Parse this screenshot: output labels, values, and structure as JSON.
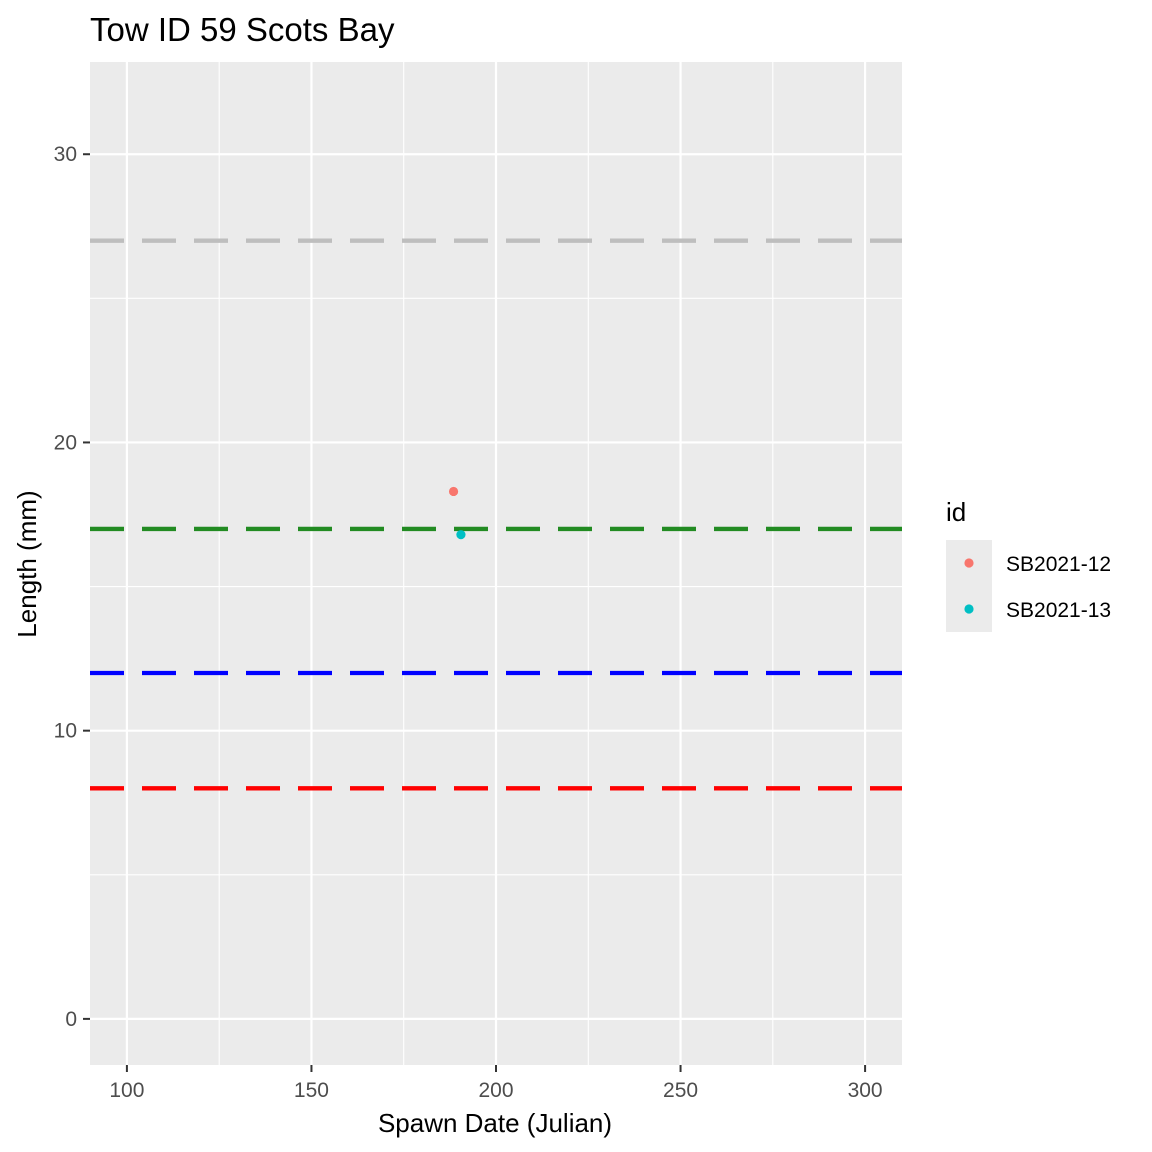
{
  "chart_data": {
    "type": "scatter",
    "title": "Tow ID 59 Scots Bay",
    "xlabel": "Spawn Date (Julian)",
    "ylabel": "Length (mm)",
    "xlim": [
      90,
      310
    ],
    "ylim": [
      -1.6,
      33.2
    ],
    "x_ticks": [
      100,
      150,
      200,
      250,
      300
    ],
    "y_ticks": [
      0,
      10,
      20,
      30
    ],
    "grid": true,
    "legend": {
      "title": "id",
      "position": "right",
      "entries": [
        {
          "label": "SB2021-12",
          "color": "#F8766D"
        },
        {
          "label": "SB2021-13",
          "color": "#00BFC4"
        }
      ]
    },
    "series": [
      {
        "name": "SB2021-12",
        "color": "#F8766D",
        "points": [
          {
            "x": 188.5,
            "y": 18.3
          }
        ]
      },
      {
        "name": "SB2021-13",
        "color": "#00BFC4",
        "points": [
          {
            "x": 190.5,
            "y": 16.8
          }
        ]
      }
    ],
    "reference_lines": [
      {
        "y": 27,
        "color": "#BEBEBE",
        "style": "dashed"
      },
      {
        "y": 17,
        "color": "#228B22",
        "style": "dashed"
      },
      {
        "y": 12,
        "color": "#0000FF",
        "style": "dashed"
      },
      {
        "y": 8,
        "color": "#FF0000",
        "style": "dashed"
      }
    ],
    "colors": {
      "panel": "#EBEBEB",
      "grid": "#FFFFFF",
      "tick": "#333333"
    }
  }
}
